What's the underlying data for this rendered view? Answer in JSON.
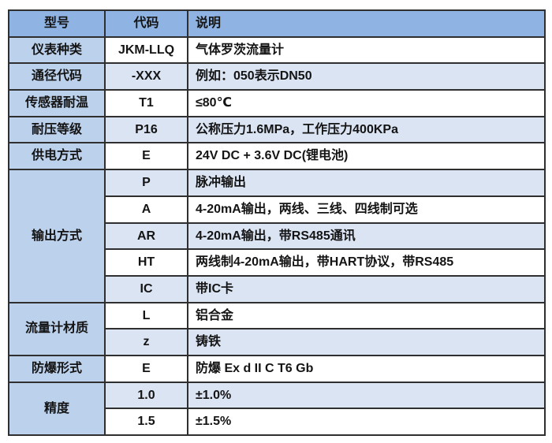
{
  "table": {
    "headers": [
      "型号",
      "代码",
      "说明"
    ],
    "groups": [
      {
        "model": "仪表种类",
        "rows": [
          {
            "code": "JKM-LLQ",
            "desc": "气体罗茨流量计"
          }
        ]
      },
      {
        "model": "通径代码",
        "rows": [
          {
            "code": "-XXX",
            "desc": "例如：050表示DN50"
          }
        ]
      },
      {
        "model": "传感器耐温",
        "rows": [
          {
            "code": "T1",
            "desc": "≤80℃"
          }
        ]
      },
      {
        "model": "耐压等级",
        "rows": [
          {
            "code": "P16",
            "desc": "公称压力1.6MPa，工作压力400KPa"
          }
        ]
      },
      {
        "model": "供电方式",
        "rows": [
          {
            "code": "E",
            "desc": "24V DC + 3.6V DC(锂电池)"
          }
        ]
      },
      {
        "model": "输出方式",
        "rows": [
          {
            "code": "P",
            "desc": "脉冲输出"
          },
          {
            "code": "A",
            "desc": "4-20mA输出，两线、三线、四线制可选"
          },
          {
            "code": "AR",
            "desc": "4-20mA输出，带RS485通讯"
          },
          {
            "code": "HT",
            "desc": "两线制4-20mA输出，带HART协议，带RS485"
          },
          {
            "code": "IC",
            "desc": "带IC卡"
          }
        ]
      },
      {
        "model": "流量计材质",
        "rows": [
          {
            "code": "L",
            "desc": "铝合金"
          },
          {
            "code": "z",
            "desc": "铸铁"
          }
        ]
      },
      {
        "model": "防爆形式",
        "rows": [
          {
            "code": "E",
            "desc": "防爆 Ex d II C T6 Gb"
          }
        ]
      },
      {
        "model": "精度",
        "rows": [
          {
            "code": "1.0",
            "desc": "±1.0%"
          },
          {
            "code": "1.5",
            "desc": "±1.5%"
          }
        ]
      }
    ],
    "colors": {
      "header_bg": "#8FB4E3",
      "model_col_bg": "#BCD1EC",
      "zebra_bg": "#DBE4F3",
      "white_bg": "#FFFFFF",
      "border": "#2F2F2F",
      "text": "#141414"
    }
  }
}
